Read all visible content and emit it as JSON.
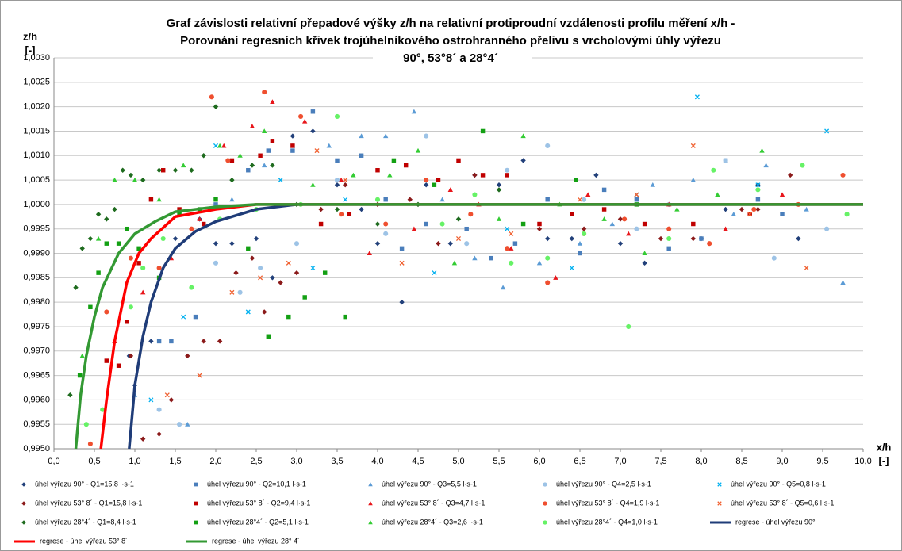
{
  "chart_data": {
    "type": "scatter",
    "title": [
      "Graf závislosti relativní přepadové výšky z/h na relativní protiproudní vzdálenosti profilu měření x/h -",
      "Porovnání regresních křivek trojúhelníkového ostrohranného přelivu s vrcholovými úhly výřezu",
      "90°, 53°8´ a 28°4´"
    ],
    "xlabel": [
      "x/h",
      "[-]"
    ],
    "ylabel": [
      "z/h",
      "[-]"
    ],
    "xlim": [
      0,
      10
    ],
    "ylim": [
      0.995,
      1.003
    ],
    "grid": true,
    "xticks": [
      {
        "value": 0,
        "label": "0,0"
      },
      {
        "value": 0.5,
        "label": "0,5"
      },
      {
        "value": 1,
        "label": "1,0"
      },
      {
        "value": 1.5,
        "label": "1,5"
      },
      {
        "value": 2,
        "label": "2,0"
      },
      {
        "value": 2.5,
        "label": "2,5"
      },
      {
        "value": 3,
        "label": "3,0"
      },
      {
        "value": 3.5,
        "label": "3,5"
      },
      {
        "value": 4,
        "label": "4,0"
      },
      {
        "value": 4.5,
        "label": "4,5"
      },
      {
        "value": 5,
        "label": "5,0"
      },
      {
        "value": 5.5,
        "label": "5,5"
      },
      {
        "value": 6,
        "label": "6,0"
      },
      {
        "value": 6.5,
        "label": "6,5"
      },
      {
        "value": 7,
        "label": "7,0"
      },
      {
        "value": 7.5,
        "label": "7,5"
      },
      {
        "value": 8,
        "label": "8,0"
      },
      {
        "value": 8.5,
        "label": "8,5"
      },
      {
        "value": 9,
        "label": "9,0"
      },
      {
        "value": 9.5,
        "label": "9,5"
      },
      {
        "value": 10,
        "label": "10,0"
      }
    ],
    "yticks": [
      {
        "value": 0.995,
        "label": "0,9950"
      },
      {
        "value": 0.9955,
        "label": "0,9955"
      },
      {
        "value": 0.996,
        "label": "0,9960"
      },
      {
        "value": 0.9965,
        "label": "0,9965"
      },
      {
        "value": 0.997,
        "label": "0,9970"
      },
      {
        "value": 0.9975,
        "label": "0,9975"
      },
      {
        "value": 0.998,
        "label": "0,9980"
      },
      {
        "value": 0.9985,
        "label": "0,9985"
      },
      {
        "value": 0.999,
        "label": "0,9990"
      },
      {
        "value": 0.9995,
        "label": "0,9995"
      },
      {
        "value": 1,
        "label": "1,0000"
      },
      {
        "value": 1.0005,
        "label": "1,0005"
      },
      {
        "value": 1.001,
        "label": "1,0010"
      },
      {
        "value": 1.0015,
        "label": "1,0015"
      },
      {
        "value": 1.002,
        "label": "1,0020"
      },
      {
        "value": 1.0025,
        "label": "1,0025"
      },
      {
        "value": 1.003,
        "label": "1,0030"
      }
    ],
    "series": [
      {
        "name": "úhel výřezu 90° - Q1=15,8 l·s-1",
        "color": "#22407a",
        "marker": "diamond",
        "x": [
          0.93,
          1.0,
          1.2,
          1.5,
          1.8,
          2.0,
          2.2,
          2.5,
          2.7,
          2.95,
          3.2,
          3.5,
          3.8,
          4.0,
          4.3,
          4.6,
          4.9,
          5.2,
          5.5,
          5.8,
          6.1,
          6.4,
          6.7,
          7.0,
          7.3,
          7.6,
          8.0,
          8.3,
          8.7,
          9.2
        ],
        "values": [
          0.9969,
          0.9963,
          0.9972,
          0.9993,
          0.9997,
          0.9992,
          0.9992,
          0.9993,
          0.9985,
          1.0014,
          1.0015,
          1.0004,
          0.9999,
          0.9992,
          0.998,
          1.0004,
          0.9992,
          1.0006,
          1.0004,
          1.0009,
          0.9993,
          0.9993,
          1.0006,
          0.9992,
          0.9988,
          1.0,
          0.9993,
          0.9999,
          1.0004,
          0.9993
        ]
      },
      {
        "name": "úhel výřezu 90° - Q2=10,1 l·s-1",
        "color": "#4a7ebb",
        "marker": "square",
        "x": [
          1.3,
          1.45,
          1.75,
          2.0,
          2.4,
          2.65,
          2.95,
          3.2,
          3.5,
          3.8,
          4.1,
          4.3,
          4.6,
          5.1,
          5.4,
          5.7,
          6.1,
          6.5,
          6.8,
          7.2,
          7.6,
          8.0,
          8.3,
          8.7,
          9.0
        ],
        "values": [
          0.9972,
          0.9972,
          0.9977,
          1.0,
          1.0007,
          1.0011,
          1.0011,
          1.0019,
          1.0009,
          1.001,
          1.0001,
          0.9991,
          0.9996,
          0.9995,
          0.9989,
          0.9992,
          1.0001,
          0.999,
          1.0003,
          1.0001,
          0.9991,
          0.9993,
          1.0009,
          1.0001,
          0.9998
        ]
      },
      {
        "name": "úhel výřezu 90° - Q3=5,5 l·s-1",
        "color": "#5b9bd5",
        "marker": "triangle",
        "x": [
          1.0,
          1.65,
          2.2,
          2.6,
          2.95,
          3.4,
          3.8,
          4.1,
          4.45,
          4.8,
          5.2,
          5.55,
          6.0,
          6.5,
          6.9,
          7.4,
          7.9,
          8.4,
          8.8,
          9.3,
          9.75
        ],
        "values": [
          0.9961,
          0.9955,
          1.0001,
          1.0008,
          1.0012,
          1.0012,
          1.0014,
          1.0014,
          1.0019,
          1.0001,
          0.9989,
          0.9983,
          0.9988,
          0.9992,
          0.9996,
          1.0004,
          1.0005,
          0.9998,
          1.0008,
          0.9999,
          0.9984
        ]
      },
      {
        "name": "úhel výřezu 90° - Q4=2,5 l·s-1",
        "color": "#9dc3e6",
        "marker": "circle",
        "x": [
          1.3,
          1.55,
          2.0,
          2.3,
          2.55,
          3.0,
          3.5,
          4.1,
          4.6,
          5.1,
          5.6,
          6.1,
          6.55,
          7.2,
          7.6,
          8.3,
          8.9,
          9.55
        ],
        "values": [
          0.9958,
          0.9955,
          0.9988,
          0.9982,
          0.9987,
          0.9992,
          1.0005,
          0.9994,
          1.0014,
          0.9992,
          1.0007,
          1.0012,
          1.0001,
          0.9995,
          1.0,
          1.0009,
          0.9989,
          0.9995
        ]
      },
      {
        "name": "úhel výřezu 90° - Q5=0,8 l·s-1",
        "color": "#00b0f0",
        "marker": "x",
        "x": [
          1.2,
          1.6,
          2.0,
          2.4,
          2.8,
          3.2,
          3.6,
          4.7,
          5.6,
          6.4,
          7.2,
          7.95,
          8.7,
          9.55
        ],
        "values": [
          0.996,
          0.9977,
          1.0012,
          0.9978,
          1.0005,
          0.9987,
          1.0001,
          0.9986,
          0.9995,
          0.9987,
          1.0002,
          1.0022,
          1.0004,
          1.0015
        ]
      },
      {
        "name": "úhel výřezu 53° 8´ - Q1=15,8 l·s-1",
        "color": "#8b1a1a",
        "marker": "diamond",
        "x": [
          0.95,
          1.1,
          1.3,
          1.45,
          1.65,
          1.85,
          2.05,
          2.25,
          2.45,
          2.6,
          2.8,
          3.0,
          3.3,
          3.6,
          4.0,
          4.4,
          4.75,
          5.2,
          5.6,
          6.0,
          6.55,
          7.0,
          7.5,
          7.9,
          8.5,
          8.7,
          9.1
        ],
        "values": [
          0.9969,
          0.9952,
          0.9953,
          0.996,
          0.9969,
          0.9972,
          0.9972,
          0.9986,
          0.9989,
          0.9978,
          0.9984,
          0.9986,
          0.9999,
          1.0004,
          1.0,
          1.0001,
          0.9992,
          1.0006,
          0.9991,
          0.9995,
          0.9995,
          0.9997,
          0.9993,
          0.9993,
          0.9999,
          0.9999,
          1.0006
        ]
      },
      {
        "name": "úhel výřezu 53° 8´ - Q2=9,4 l·s-1",
        "color": "#c00000",
        "marker": "square",
        "x": [
          0.65,
          0.8,
          0.9,
          1.05,
          1.2,
          1.35,
          1.55,
          1.85,
          2.2,
          2.55,
          2.7,
          2.95,
          3.3,
          3.65,
          4.0,
          4.35,
          4.75,
          5.0,
          5.3,
          5.6,
          6.0,
          6.4,
          6.8,
          7.3,
          7.9,
          8.6
        ],
        "values": [
          0.9968,
          0.9967,
          0.9976,
          0.9988,
          1.0001,
          1.0007,
          0.9999,
          0.9996,
          1.0009,
          1.001,
          1.0013,
          1.0012,
          0.9996,
          0.9998,
          1.0007,
          1.0008,
          1.0005,
          1.0009,
          1.0006,
          1.0006,
          0.9996,
          0.9998,
          0.9999,
          0.9996,
          0.9996,
          0.9998
        ]
      },
      {
        "name": "úhel výřezu 53° 8´ - Q3=4,7 l·s-1",
        "color": "#e8161b",
        "marker": "triangle",
        "x": [
          0.75,
          1.1,
          1.45,
          1.8,
          2.1,
          2.45,
          2.7,
          3.1,
          3.55,
          3.9,
          4.45,
          4.9,
          5.25,
          5.65,
          6.2,
          6.6,
          7.1,
          7.6,
          8.3,
          9.0
        ],
        "values": [
          0.9972,
          0.9982,
          0.9989,
          0.9997,
          1.0012,
          1.0016,
          1.0021,
          1.0017,
          1.0005,
          0.999,
          0.9995,
          1.0003,
          1.0,
          0.9991,
          0.9985,
          1.0002,
          0.9994,
          1.0,
          0.9995,
          1.0002
        ]
      },
      {
        "name": "úhel výřezu 53° 8´ - Q4=1,9 l·s-1",
        "color": "#ef4f2f",
        "marker": "circle",
        "x": [
          0.45,
          0.65,
          0.95,
          1.3,
          1.7,
          1.95,
          2.15,
          2.6,
          3.05,
          3.55,
          4.1,
          4.6,
          5.15,
          5.6,
          6.1,
          6.55,
          7.05,
          7.6,
          8.1,
          8.65,
          9.2,
          9.75
        ],
        "values": [
          0.9951,
          0.9978,
          0.9989,
          0.9987,
          0.9995,
          1.0022,
          1.0009,
          1.0023,
          1.0018,
          0.9998,
          0.9996,
          1.0005,
          0.9998,
          0.9991,
          0.9984,
          0.9994,
          0.9997,
          0.9995,
          0.9992,
          0.9999,
          1.0,
          1.0006
        ]
      },
      {
        "name": "úhel výřezu 53° 8´ - Q5=0,6 l·s-1",
        "color": "#f06030",
        "marker": "x",
        "x": [
          1.4,
          1.8,
          2.2,
          2.55,
          2.9,
          3.25,
          3.6,
          4.3,
          5.0,
          5.65,
          6.5,
          7.2,
          7.9,
          8.6,
          9.3
        ],
        "values": [
          0.9961,
          0.9965,
          0.9982,
          0.9985,
          0.9988,
          1.0011,
          1.0005,
          0.9988,
          0.9993,
          0.9994,
          1.0001,
          1.0002,
          1.0012,
          0.9998,
          0.9987
        ]
      },
      {
        "name": "úhel výřezu 28°4´ - Q1=8,4 l·s-1",
        "color": "#1e6b1e",
        "marker": "diamond",
        "x": [
          0.2,
          0.27,
          0.35,
          0.45,
          0.55,
          0.65,
          0.75,
          0.85,
          0.95,
          1.1,
          1.3,
          1.5,
          1.7,
          1.85,
          2.0,
          2.2,
          2.45,
          2.7,
          3.0,
          3.5,
          4.0,
          4.5,
          5.0,
          5.5
        ],
        "values": [
          0.9961,
          0.9983,
          0.9991,
          0.9993,
          0.9998,
          0.9997,
          0.9999,
          1.0007,
          1.0006,
          1.0005,
          1.0007,
          1.0007,
          1.0007,
          1.001,
          1.002,
          1.0005,
          1.0008,
          1.0008,
          1.0,
          0.9999,
          0.9996,
          1.0,
          0.9997,
          1.0003
        ]
      },
      {
        "name": "úhel výřezu 28°4´ - Q2=5,1 l·s-1",
        "color": "#13a013",
        "marker": "square",
        "x": [
          0.32,
          0.45,
          0.55,
          0.65,
          0.8,
          0.9,
          1.05,
          1.3,
          1.55,
          1.8,
          2.0,
          2.4,
          2.65,
          2.9,
          3.1,
          3.35,
          3.6,
          4.2,
          4.7,
          5.3,
          5.8,
          6.45,
          7.2
        ],
        "values": [
          0.9965,
          0.9979,
          0.9986,
          0.9992,
          0.9992,
          0.9995,
          0.9991,
          0.9985,
          0.9998,
          0.9999,
          1.0001,
          0.9991,
          0.9973,
          0.9977,
          0.9981,
          0.9986,
          0.9977,
          1.0009,
          1.0004,
          1.0015,
          0.9996,
          1.0005,
          1.0
        ]
      },
      {
        "name": "úhel výřezu 28°4´ - Q3=2,6 l·s-1",
        "color": "#33cc33",
        "marker": "triangle",
        "x": [
          0.35,
          0.55,
          0.75,
          1.0,
          1.3,
          1.6,
          2.05,
          2.3,
          2.6,
          3.2,
          3.7,
          4.15,
          4.5,
          4.95,
          5.5,
          5.8,
          6.25,
          6.8,
          7.3,
          7.7,
          8.2,
          8.75
        ],
        "values": [
          0.9969,
          0.9993,
          1.0005,
          1.0005,
          1.0001,
          1.0008,
          1.0012,
          1.001,
          1.0015,
          1.0004,
          1.0006,
          1.0006,
          1.0011,
          0.9988,
          0.9997,
          1.0014,
          1.0,
          0.9997,
          0.999,
          0.9999,
          1.0002,
          1.0011
        ]
      },
      {
        "name": "úhel výřezu 28°4´ - Q4=1,0 l·s-1",
        "color": "#66f266",
        "marker": "circle",
        "x": [
          0.4,
          0.6,
          0.95,
          1.1,
          1.35,
          1.7,
          2.05,
          2.5,
          3.05,
          3.5,
          4.0,
          4.8,
          5.2,
          5.65,
          6.1,
          6.55,
          7.1,
          7.6,
          8.15,
          8.7,
          9.25,
          9.8
        ],
        "values": [
          0.9955,
          0.9958,
          0.9979,
          0.9987,
          0.9993,
          0.9983,
          0.9997,
          0.9999,
          1.0,
          1.0018,
          1.0001,
          0.9996,
          1.0002,
          0.9988,
          0.9989,
          0.9994,
          0.9975,
          0.9993,
          1.0007,
          1.0003,
          1.0008,
          0.9998
        ]
      },
      {
        "name": "regrese - úhel výřezu 90°",
        "color": "#1f3c78",
        "marker": "line",
        "x": [
          0.93,
          1.0,
          1.1,
          1.2,
          1.35,
          1.5,
          1.75,
          2.0,
          2.5,
          3.0,
          4.0,
          10.0
        ],
        "values": [
          0.995,
          0.9963,
          0.9973,
          0.998,
          0.9987,
          0.9991,
          0.99945,
          0.99965,
          0.9999,
          1.0,
          1.0,
          1.0
        ]
      },
      {
        "name": "regrese - úhel výřezu 53° 8´",
        "color": "#ff0000",
        "marker": "line",
        "x": [
          0.58,
          0.65,
          0.75,
          0.9,
          1.05,
          1.2,
          1.5,
          2.0,
          2.5,
          3.0,
          10.0
        ],
        "values": [
          0.995,
          0.996,
          0.9972,
          0.9984,
          0.999,
          0.9993,
          0.99975,
          0.9999,
          1.0,
          1.0,
          1.0
        ]
      },
      {
        "name": "regrese - úhel výřezu 28° 4´",
        "color": "#339933",
        "marker": "line",
        "x": [
          0.27,
          0.33,
          0.4,
          0.5,
          0.6,
          0.8,
          1.0,
          1.25,
          1.5,
          2.0,
          2.5,
          10.0
        ],
        "values": [
          0.995,
          0.9961,
          0.9969,
          0.9977,
          0.9983,
          0.999,
          0.9994,
          0.99965,
          0.99985,
          0.99995,
          1.0,
          1.0
        ]
      }
    ]
  }
}
